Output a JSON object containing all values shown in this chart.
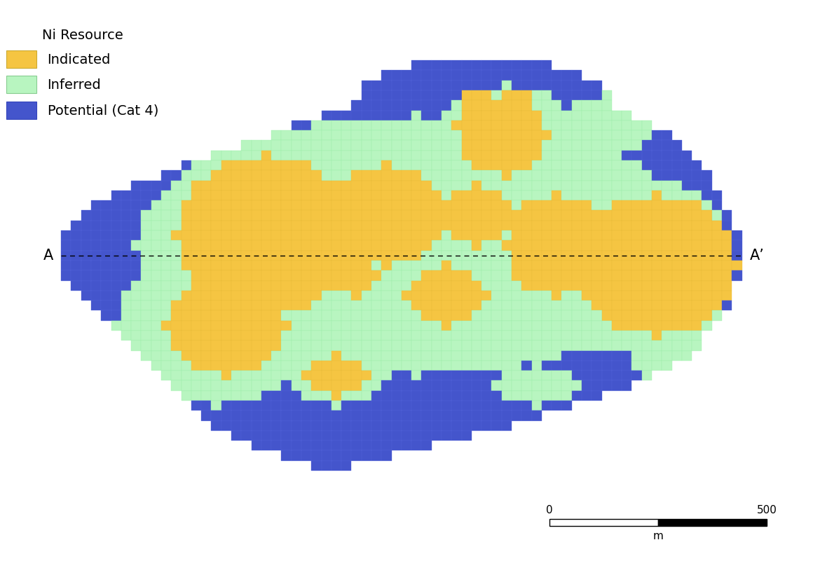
{
  "colors": {
    "indicated": "#F5C542",
    "inferred": "#B8F5C0",
    "potential": "#4455CC",
    "background": "#FFFFFF",
    "grid_line_potential": "#5566DD",
    "grid_line_inferred": "#99EEA8",
    "grid_line_indicated": "#E8BB38"
  },
  "legend_title": "Ni Resource",
  "legend_labels": [
    "Indicated",
    "Inferred",
    "Potential (Cat 4)"
  ],
  "section_label_left": "A",
  "section_label_right": "A’",
  "scalebar": {
    "label_left": "0",
    "label_right": "500",
    "unit": "m"
  },
  "legend_fontsize": 14,
  "cell_size": 1.0
}
